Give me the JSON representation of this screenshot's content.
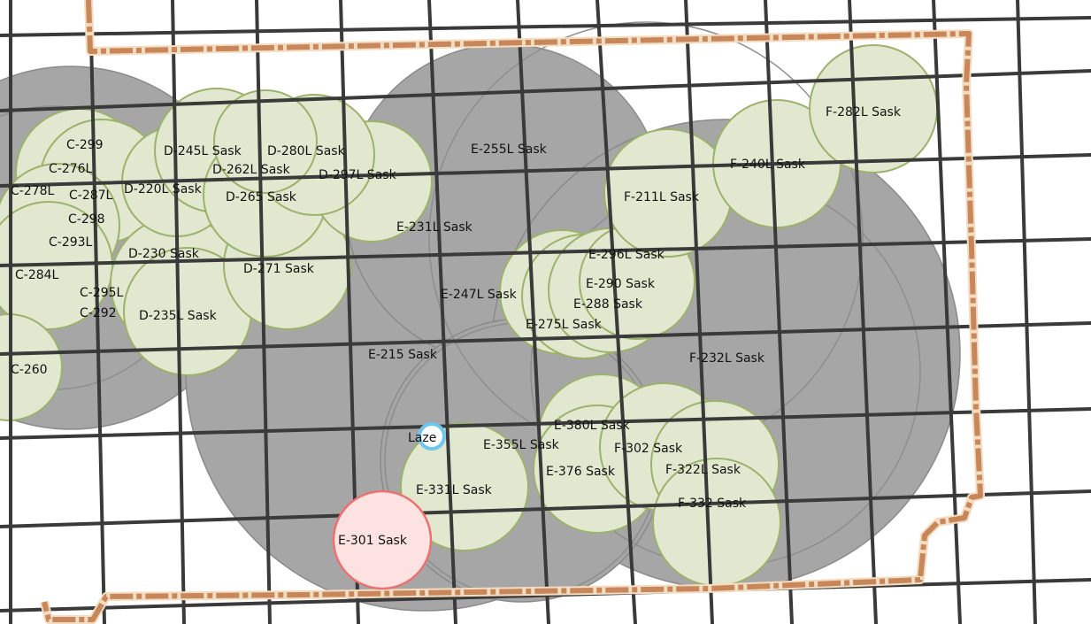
{
  "map": {
    "colors": {
      "coverage_gray": "#a6a6a6",
      "site_green": "#e1e8cf",
      "site_green_stroke": "#9bb26b",
      "highlight_pink": "#fde2e2",
      "highlight_pink_stroke": "#ee7070",
      "marker_blue": "#6cc8ee",
      "grid": "#3a3a3a",
      "boundary": "#c8875a"
    },
    "labels": {
      "c299": "C-299",
      "c276l": "C-276L",
      "c278l": "C-278L",
      "c287l": "C-287L",
      "c298": "C-298",
      "c293l": "C-293L",
      "c284l": "C-284L",
      "c295l": "C-295L",
      "c292": "C-292",
      "c260": "C-260",
      "d245l": "D-245L Sask",
      "d280l": "D-280L Sask",
      "d262l": "D-262L Sask",
      "d297l": "D-297L Sask",
      "d220l": "D-220L Sask",
      "d265": "D-265 Sask",
      "d230": "D-230 Sask",
      "d271": "D-271 Sask",
      "d235l": "D-235L Sask",
      "e255l": "E-255L Sask",
      "e231l": "E-231L Sask",
      "e247l": "E-247L Sask",
      "e296l": "E-296L Sask",
      "e290": "E-290 Sask",
      "e288": "E-288 Sask",
      "e275l": "E-275L Sask",
      "e215": "E-215 Sask",
      "e380l": "E-380L Sask",
      "e355l": "E-355L Sask",
      "e376": "E-376 Sask",
      "e331l": "E-331L Sask",
      "e301": "E-301 Sask",
      "f282l": "F-282L Sask",
      "f240l": "F-240L Sask",
      "f211l": "F-211L Sask",
      "f232l": "F-232L Sask",
      "f302": "F-302 Sask",
      "f322l": "F-322L Sask",
      "f332": "F-332 Sask",
      "laze": "Laze"
    }
  }
}
